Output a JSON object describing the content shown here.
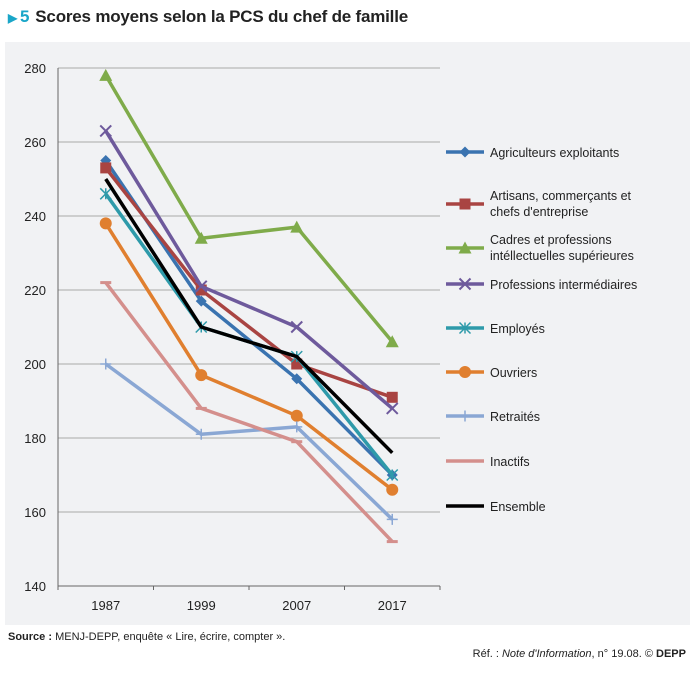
{
  "title": {
    "number": "5",
    "text": "Scores moyens selon la PCS du chef de famille",
    "icon": "triangle-right-icon",
    "accent": "#1aa6c8"
  },
  "chart_data": {
    "type": "line",
    "title": "Scores moyens selon la PCS du chef de famille",
    "categories": [
      "1987",
      "1999",
      "2007",
      "2017"
    ],
    "ylim": [
      140,
      280
    ],
    "yticks": [
      140,
      160,
      180,
      200,
      220,
      240,
      260,
      280
    ],
    "grid": true,
    "legend": "right",
    "series": [
      {
        "name": "Agriculteurs exploitants",
        "color": "#3a73b0",
        "marker": "diamond",
        "values": [
          255,
          217,
          196,
          170
        ]
      },
      {
        "name": "Artisans, commerçants et chefs d'entreprise",
        "color": "#a94442",
        "marker": "square",
        "values": [
          253,
          220,
          200,
          191
        ]
      },
      {
        "name": "Cadres et professions intéllectuelles supérieures",
        "color": "#7fab4a",
        "marker": "triangle",
        "values": [
          278,
          234,
          237,
          206
        ]
      },
      {
        "name": "Professions intermédiaires",
        "color": "#6e5a9c",
        "marker": "x",
        "values": [
          263,
          221,
          210,
          188
        ]
      },
      {
        "name": "Employés",
        "color": "#2e9aaa",
        "marker": "star",
        "values": [
          246,
          210,
          202,
          170
        ]
      },
      {
        "name": "Ouvriers",
        "color": "#e07f2f",
        "marker": "circle",
        "values": [
          238,
          197,
          186,
          166
        ]
      },
      {
        "name": "Retraités",
        "color": "#8aa7d4",
        "marker": "plus",
        "values": [
          200,
          181,
          183,
          158
        ]
      },
      {
        "name": "Inactifs",
        "color": "#d48f8c",
        "marker": "dash",
        "values": [
          222,
          188,
          179,
          152
        ]
      },
      {
        "name": "Ensemble",
        "color": "#000000",
        "marker": "none",
        "values": [
          250,
          210,
          202,
          176
        ]
      }
    ]
  },
  "footer": {
    "source_label": "Source :",
    "source_text": " MENJ-DEPP, enquête « Lire, écrire, compter ».",
    "ref_prefix": "Réf. : ",
    "ref_pub": "Note d'Information",
    "ref_num": ", n° 19.08. © ",
    "ref_org": "DEPP"
  }
}
